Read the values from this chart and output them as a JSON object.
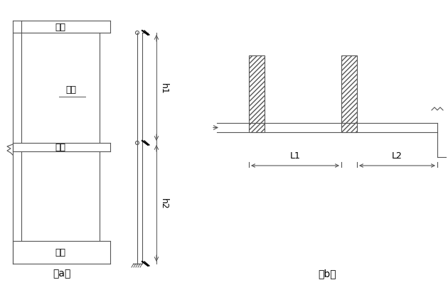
{
  "fig_width": 6.3,
  "fig_height": 4.02,
  "dpi": 100,
  "bg_color": "#ffffff",
  "line_color": "#555555",
  "label_a": "（a）",
  "label_b": "（b）",
  "text_dingban": "顶板",
  "text_cebi": "侧壁",
  "text_loban": "楼板",
  "text_diban": "底板",
  "text_h1": "h1",
  "text_h2": "h2",
  "text_L1": "L1",
  "text_L2": "L2",
  "font_size_label": 10,
  "font_size_text": 9,
  "hatch_pattern": "////"
}
